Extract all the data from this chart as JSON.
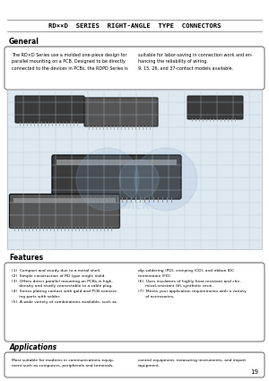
{
  "title": "RD××D  SERIES  RIGHT-ANGLE  TYPE  CONNECTORS",
  "page_number": "19",
  "general_label": "General",
  "general_text_left": "The RD×D Series use a molded one-piece design for\nparallel mounting on a PCB. Designed to be directly\nconnected to the devices in PCBs, the RDPD Series is",
  "general_text_right": "suitable for labor-saving in connection work and en-\nhancing the reliability of wiring.\n9, 15, 26, and 37-contact models available.",
  "features_label": "Features",
  "features_left": "(1)  Compact and sturdy due to a metal shell.\n(2)  Simple construction of RD type single mold.\n(3)  Offers direct parallel mounting on PCBs in high-\n      density and neatly connectable to a cable plug.\n(4)  Series plating contact with gold and PCB-connect-\n      ing parts with solder.\n(5)  A wide variety of combinations available, such as",
  "features_right": "dip soldering (PD), crimping (CD), and ribbon IDC\ntermination (FD).\n(6)  Uses insulators of highly heat-resistant and che-\n      mical-resistant GIL synthetic resin.\n(7)  Meets your application requirements with a variety\n      of accessories.",
  "applications_label": "Applications",
  "applications_text_left": "Most suitable for modems in communications equip-\nment such as computers, peripherals and terminals,",
  "applications_text_right": "control equipment, measuring instruments, and import\nequipment.",
  "line_color": "#888888",
  "box_edge_color": "#666666",
  "grid_color": "#b8c8d8",
  "connector_dark": "#3a3a3a",
  "connector_mid": "#555555",
  "connector_light": "#777777",
  "watermark_color": "#88aacc",
  "bg_color": "#ffffff",
  "img_bg": "#dde8f0"
}
